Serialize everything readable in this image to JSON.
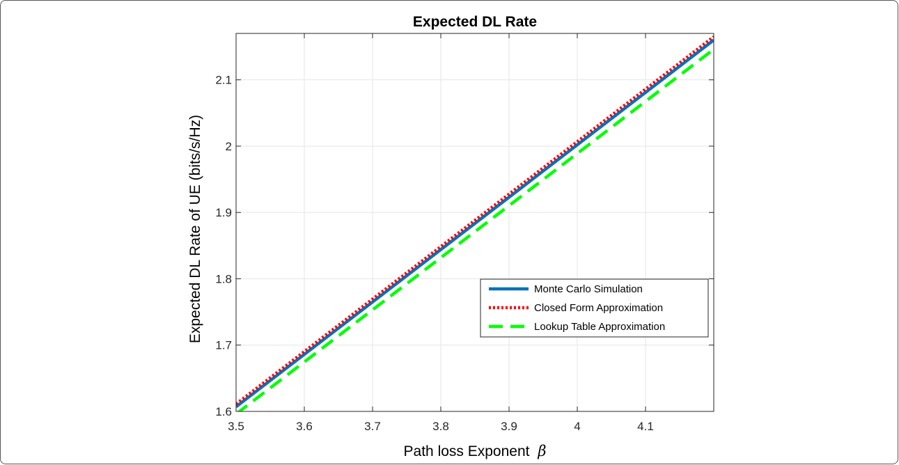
{
  "chart_data": {
    "type": "line",
    "title": "Expected DL Rate",
    "xlabel": "Path loss Exponent",
    "xlabel_symbol": "β",
    "ylabel": "Expected DL Rate of UE (bits/s/Hz)",
    "xlim": [
      3.5,
      4.2
    ],
    "ylim": [
      1.6,
      2.17
    ],
    "xticks": [
      3.5,
      3.6,
      3.7,
      3.8,
      3.9,
      4.0,
      4.1
    ],
    "xtick_labels": [
      "3.5",
      "3.6",
      "3.7",
      "3.8",
      "3.9",
      "4",
      "4.1"
    ],
    "yticks": [
      1.6,
      1.7,
      1.8,
      1.9,
      2.0,
      2.1
    ],
    "ytick_labels": [
      "1.6",
      "1.7",
      "1.8",
      "1.9",
      "2",
      "2.1"
    ],
    "grid": true,
    "legend_position": "lower-right",
    "series": [
      {
        "name": "Monte Carlo Simulation",
        "color": "#0072BD",
        "style": "solid",
        "x": [
          3.5,
          4.2
        ],
        "y": [
          1.607,
          2.16
        ]
      },
      {
        "name": "Closed Form Approximation",
        "color": "#FF0000",
        "style": "dotted",
        "x": [
          3.5,
          4.2
        ],
        "y": [
          1.611,
          2.165
        ]
      },
      {
        "name": "Lookup Table Approximation",
        "color": "#00FF00",
        "style": "dashed",
        "x": [
          3.5,
          4.2
        ],
        "y": [
          1.596,
          2.146
        ]
      }
    ]
  }
}
